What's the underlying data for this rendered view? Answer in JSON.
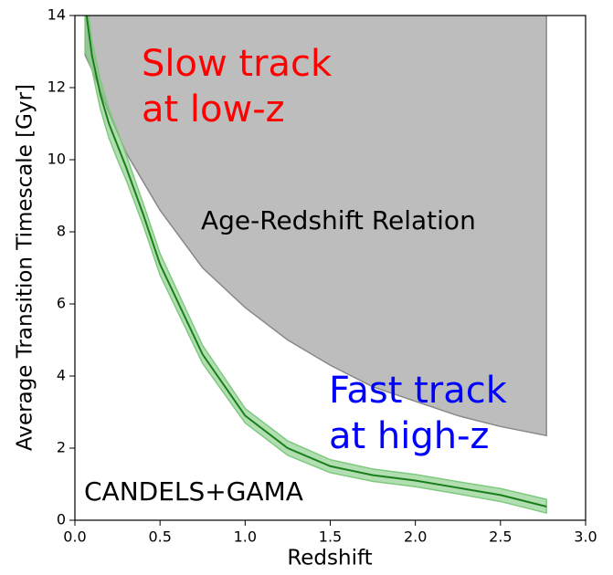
{
  "chart_data": {
    "type": "line",
    "xlabel": "Redshift",
    "ylabel": "Average Transition Timescale [Gyr]",
    "xlim": [
      0,
      3.0
    ],
    "ylim": [
      0,
      14
    ],
    "xticks": [
      {
        "value": 0,
        "label": "0.0"
      },
      {
        "value": 0.5,
        "label": "0.5"
      },
      {
        "value": 1.0,
        "label": "1.0"
      },
      {
        "value": 1.5,
        "label": "1.5"
      },
      {
        "value": 2.0,
        "label": "2.0"
      },
      {
        "value": 2.5,
        "label": "2.5"
      },
      {
        "value": 3.0,
        "label": "3.0"
      }
    ],
    "yticks": [
      0,
      2,
      4,
      6,
      8,
      10,
      12,
      14
    ],
    "series": [
      {
        "name": "CANDELS+GAMA",
        "color": "#1a7f1a",
        "band_color": "#7fc97f",
        "x": [
          0.06,
          0.1,
          0.15,
          0.2,
          0.25,
          0.3,
          0.4,
          0.5,
          0.75,
          1.0,
          1.25,
          1.5,
          1.75,
          2.0,
          2.25,
          2.5,
          2.77
        ],
        "values": [
          14.3,
          12.9,
          11.8,
          11.0,
          10.4,
          9.8,
          8.5,
          7.1,
          4.6,
          2.9,
          2.0,
          1.5,
          1.25,
          1.1,
          0.9,
          0.7,
          0.38
        ],
        "lower": [
          13.0,
          12.5,
          11.4,
          10.6,
          10.0,
          9.45,
          8.2,
          6.8,
          4.35,
          2.7,
          1.8,
          1.32,
          1.08,
          0.93,
          0.73,
          0.52,
          0.2
        ],
        "upper": [
          14.8,
          13.3,
          12.2,
          11.4,
          10.8,
          10.15,
          8.8,
          7.4,
          4.85,
          3.1,
          2.2,
          1.68,
          1.42,
          1.27,
          1.07,
          0.88,
          0.58
        ]
      }
    ],
    "region": {
      "name": "Age-Redshift Relation",
      "color": "#bdbdbd",
      "x": [
        0.06,
        0.1,
        0.2,
        0.3,
        0.5,
        0.75,
        1.0,
        1.25,
        1.5,
        1.75,
        2.0,
        2.25,
        2.5,
        2.77
      ],
      "lower": [
        12.9,
        12.5,
        11.3,
        10.2,
        8.6,
        7.0,
        5.9,
        5.0,
        4.3,
        3.7,
        3.3,
        2.9,
        2.6,
        2.35
      ]
    },
    "annotations": [
      {
        "lines": [
          "Slow track",
          "at low-z"
        ],
        "color": "#ff0000"
      },
      {
        "lines": [
          "Fast track",
          "at high-z"
        ],
        "color": "#0000ff"
      }
    ]
  }
}
